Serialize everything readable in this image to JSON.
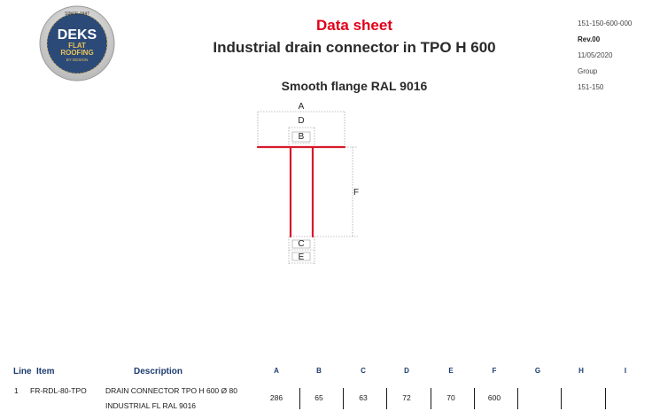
{
  "logo": {
    "since": "SINCE 1947",
    "brand": "DEKS",
    "line1": "FLAT",
    "line2": "ROOFING",
    "line3": "BY DESIGN"
  },
  "header": {
    "title": "Data sheet",
    "product": "Industrial drain connector in TPO H 600",
    "subtitle": "Smooth flange RAL 9016"
  },
  "meta": {
    "code": "151-150-600-000",
    "revision": "Rev.00",
    "date": "11/05/2020",
    "group_label": "Group",
    "group": "151-150"
  },
  "drawing": {
    "labels": {
      "a": "A",
      "b": "B",
      "c": "C",
      "d": "D",
      "e": "E",
      "f": "F"
    },
    "colors": {
      "part": "#d7192b",
      "dimension": "#888888"
    }
  },
  "table": {
    "headers": {
      "line": "Line",
      "item": "Item",
      "description": "Description",
      "columns": [
        "A",
        "B",
        "C",
        "D",
        "E",
        "F",
        "G",
        "H",
        "I"
      ]
    },
    "rows": [
      {
        "line": "1",
        "item": "FR-RDL-80-TPO",
        "description_1": "DRAIN CONNECTOR TPO H 600 Ø 80",
        "description_2": "INDUSTRIAL FL RAL 9016",
        "values": [
          "286",
          "65",
          "63",
          "72",
          "70",
          "600",
          "",
          "",
          ""
        ]
      }
    ]
  }
}
